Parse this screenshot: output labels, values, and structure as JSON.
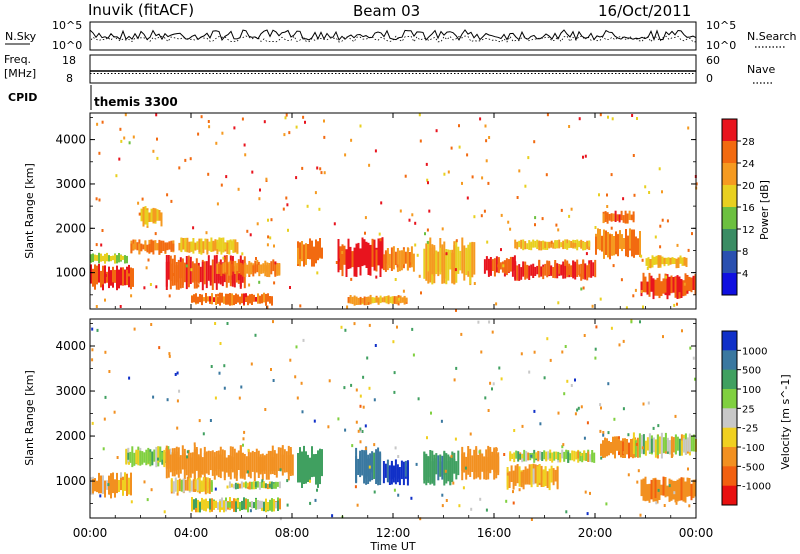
{
  "header": {
    "station": "Inuvik (fitACF)",
    "beam": "Beam 03",
    "date": "16/Oct/2011"
  },
  "noise_panel": {
    "left_label": "N.Sky",
    "right_label": "N.Search",
    "left_ticks": [
      "10^5",
      "10^0"
    ],
    "right_ticks": [
      "10^5",
      "10^0"
    ]
  },
  "freq_panel": {
    "left_label_1": "Freq.",
    "left_label_2": "[MHz]",
    "right_label": "Nave",
    "left_ticks": [
      "18",
      "8"
    ],
    "right_ticks": [
      "60",
      "0"
    ]
  },
  "cpid": {
    "label": "CPID",
    "value": "themis 3300"
  },
  "x_axis": {
    "label": "Time UT",
    "ticks": [
      "00:00",
      "04:00",
      "08:00",
      "12:00",
      "16:00",
      "20:00",
      "00:00"
    ]
  },
  "power_bar": {
    "label": "Power [dB]",
    "ticks": [
      "4",
      "8",
      "12",
      "16",
      "20",
      "24",
      "28"
    ],
    "colors": [
      "#1010e0",
      "#2a50b0",
      "#3a8c64",
      "#6cc040",
      "#e8d020",
      "#f59a20",
      "#f26a10",
      "#e8141e"
    ]
  },
  "velocity_bar": {
    "label": "Velocity [m s^-1]",
    "ticks": [
      "1000",
      "500",
      "100",
      "25",
      "-25",
      "-100",
      "-500",
      "-1000"
    ],
    "colors": [
      "#1030c8",
      "#3a78a0",
      "#40a060",
      "#80d040",
      "#c8c8c8",
      "#f0d020",
      "#f29020",
      "#f26010",
      "#e81010"
    ]
  },
  "chart_data": [
    {
      "type": "heatmap",
      "title": "Power",
      "xlabel": "Time UT",
      "ylabel": "Slant Range [km]",
      "xlim": [
        0,
        24
      ],
      "ylim": [
        180,
        4600
      ],
      "yticks": [
        "1000",
        "2000",
        "3000",
        "4000"
      ],
      "zlabel": "Power [dB]",
      "regions": [
        {
          "t": [
            0.0,
            1.7
          ],
          "r": [
            600,
            1200
          ],
          "z": 28
        },
        {
          "t": [
            0.0,
            1.5
          ],
          "r": [
            1200,
            1450
          ],
          "z": 16
        },
        {
          "t": [
            1.6,
            3.3
          ],
          "r": [
            1400,
            1750
          ],
          "z": 24
        },
        {
          "t": [
            3.0,
            6.1
          ],
          "r": [
            600,
            1400
          ],
          "z": 28
        },
        {
          "t": [
            3.5,
            5.8
          ],
          "r": [
            1400,
            1800
          ],
          "z": 20
        },
        {
          "t": [
            5.0,
            7.5
          ],
          "r": [
            900,
            1300
          ],
          "z": 24
        },
        {
          "t": [
            4.0,
            7.2
          ],
          "r": [
            250,
            550
          ],
          "z": 26
        },
        {
          "t": [
            2.0,
            2.8
          ],
          "r": [
            2000,
            2500
          ],
          "z": 20
        },
        {
          "t": [
            8.2,
            9.2
          ],
          "r": [
            1100,
            1800
          ],
          "z": 24
        },
        {
          "t": [
            9.8,
            11.6
          ],
          "r": [
            900,
            1800
          ],
          "z": 28
        },
        {
          "t": [
            10.2,
            12.5
          ],
          "r": [
            250,
            500
          ],
          "z": 22
        },
        {
          "t": [
            11.6,
            12.8
          ],
          "r": [
            1000,
            1600
          ],
          "z": 24
        },
        {
          "t": [
            13.2,
            15.2
          ],
          "r": [
            700,
            1800
          ],
          "z": 20
        },
        {
          "t": [
            15.6,
            16.8
          ],
          "r": [
            900,
            1400
          ],
          "z": 28
        },
        {
          "t": [
            16.8,
            20.0
          ],
          "r": [
            800,
            1300
          ],
          "z": 28
        },
        {
          "t": [
            16.8,
            19.8
          ],
          "r": [
            1500,
            1750
          ],
          "z": 20
        },
        {
          "t": [
            20.0,
            21.8
          ],
          "r": [
            1300,
            2000
          ],
          "z": 24
        },
        {
          "t": [
            20.3,
            21.5
          ],
          "r": [
            2100,
            2400
          ],
          "z": 26
        },
        {
          "t": [
            21.8,
            24.0
          ],
          "r": [
            400,
            1000
          ],
          "z": 28
        },
        {
          "t": [
            22.0,
            23.6
          ],
          "r": [
            1100,
            1400
          ],
          "z": 20
        }
      ]
    },
    {
      "type": "heatmap",
      "title": "Velocity",
      "xlabel": "Time UT",
      "ylabel": "Slant Range [km]",
      "xlim": [
        0,
        24
      ],
      "ylim": [
        180,
        4600
      ],
      "yticks": [
        "1000",
        "2000",
        "3000",
        "4000"
      ],
      "zlabel": "Velocity [m s^-1]",
      "regions": [
        {
          "t": [
            0.0,
            1.6
          ],
          "r": [
            600,
            1200
          ],
          "z": -150
        },
        {
          "t": [
            1.4,
            3.2
          ],
          "r": [
            1300,
            1800
          ],
          "z": 60
        },
        {
          "t": [
            3.0,
            8.0
          ],
          "r": [
            1000,
            1800
          ],
          "z": -250
        },
        {
          "t": [
            3.2,
            4.8
          ],
          "r": [
            700,
            1100
          ],
          "z": -100
        },
        {
          "t": [
            5.5,
            7.5
          ],
          "r": [
            800,
            1000
          ],
          "z": 0
        },
        {
          "t": [
            4.0,
            7.5
          ],
          "r": [
            300,
            650
          ],
          "z": 0
        },
        {
          "t": [
            8.2,
            9.2
          ],
          "r": [
            800,
            1800
          ],
          "z": 300
        },
        {
          "t": [
            10.5,
            11.5
          ],
          "r": [
            900,
            1800
          ],
          "z": 600
        },
        {
          "t": [
            11.6,
            12.6
          ],
          "r": [
            900,
            1500
          ],
          "z": 1100
        },
        {
          "t": [
            13.2,
            14.6
          ],
          "r": [
            900,
            1700
          ],
          "z": 400
        },
        {
          "t": [
            14.7,
            16.2
          ],
          "r": [
            1000,
            1800
          ],
          "z": -300
        },
        {
          "t": [
            16.5,
            18.5
          ],
          "r": [
            800,
            1400
          ],
          "z": -150
        },
        {
          "t": [
            16.6,
            20.0
          ],
          "r": [
            1400,
            1700
          ],
          "z": 0
        },
        {
          "t": [
            20.2,
            21.6
          ],
          "r": [
            1500,
            2000
          ],
          "z": -400
        },
        {
          "t": [
            21.8,
            24.0
          ],
          "r": [
            500,
            1100
          ],
          "z": -400
        },
        {
          "t": [
            21.5,
            24.0
          ],
          "r": [
            1500,
            2100
          ],
          "z": 0
        }
      ]
    }
  ]
}
